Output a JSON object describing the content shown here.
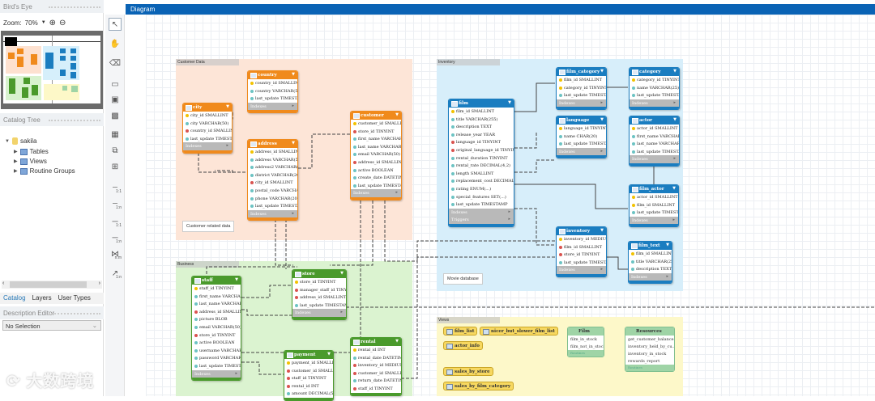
{
  "left_panel": {
    "birds_eye_title": "Bird's Eye",
    "zoom_label": "Zoom:",
    "zoom_value": "70%",
    "catalog_tree_title": "Catalog Tree",
    "tree": {
      "schema": "sakila",
      "children": [
        "Tables",
        "Views",
        "Routine Groups"
      ]
    },
    "tabs": [
      "Catalog",
      "Layers",
      "User Types"
    ],
    "active_tab": "Catalog",
    "description_editor_title": "Description Editor",
    "description_select": "No Selection"
  },
  "toolbar": {
    "tools": [
      "pointer-icon",
      "hand-icon",
      "eraser-icon",
      "layer-icon",
      "note-icon",
      "image-icon",
      "table-icon",
      "view-icon",
      "routine-group-icon",
      "rel-1-1-nonid-icon",
      "rel-1-n-nonid-icon",
      "rel-1-1-id-icon",
      "rel-1-n-id-icon",
      "rel-n-m-icon",
      "rel-existing-icon"
    ],
    "rel_labels": [
      "1:1",
      "1:n",
      "1:1",
      "1:n",
      "n:m",
      "1:n"
    ]
  },
  "diagram_tab": "Diagram",
  "colors": {
    "customer": "#f08a1c",
    "inventory": "#1a7dc0",
    "business": "#4a9a2c",
    "views_bg": "#fdf8c8",
    "tab": "#0a63b5"
  },
  "groups": [
    {
      "id": "customer",
      "label": "Customer Data",
      "note": "Customer related data"
    },
    {
      "id": "inventory",
      "label": "Inventory",
      "note": "Movie database"
    },
    {
      "id": "business",
      "label": "Business",
      "note": ""
    },
    {
      "id": "views",
      "label": "Views",
      "note": ""
    }
  ],
  "tables": [
    {
      "name": "country",
      "group": "customer",
      "columns": [
        "country_id SMALLINT",
        "country VARCHAR(50)",
        "last_update TIMESTAMP"
      ],
      "footers": [
        "Indexes"
      ]
    },
    {
      "name": "city",
      "group": "customer",
      "columns": [
        "city_id SMALLINT",
        "city VARCHAR(50)",
        "country_id SMALLINT",
        "last_update TIMESTAMP"
      ],
      "footers": [
        "Indexes"
      ]
    },
    {
      "name": "address",
      "group": "customer",
      "columns": [
        "address_id SMALLINT",
        "address VARCHAR(50)",
        "address2 VARCHAR(50)",
        "district VARCHAR(20)",
        "city_id SMALLINT",
        "postal_code VARCHAR(10)",
        "phone VARCHAR(20)",
        "last_update TIMESTAMP"
      ],
      "footers": [
        "Indexes"
      ]
    },
    {
      "name": "customer",
      "group": "customer",
      "columns": [
        "customer_id SMALLINT",
        "store_id TINYINT",
        "first_name VARCHAR(45)",
        "last_name VARCHAR(45)",
        "email VARCHAR(50)",
        "address_id SMALLINT",
        "active BOOLEAN",
        "create_date DATETIME",
        "last_update TIMESTAMP"
      ],
      "footers": [
        "Indexes"
      ]
    },
    {
      "name": "film",
      "group": "inventory",
      "columns": [
        "film_id SMALLINT",
        "title VARCHAR(255)",
        "description TEXT",
        "release_year YEAR",
        "language_id TINYINT",
        "original_language_id TINYINT",
        "rental_duration TINYINT",
        "rental_rate DECIMAL(4,2)",
        "length SMALLINT",
        "replacement_cost DECIMAL(5,2)",
        "rating ENUM(...)",
        "special_features SET(...)",
        "last_update TIMESTAMP"
      ],
      "footers": [
        "Indexes",
        "Triggers"
      ]
    },
    {
      "name": "film_category",
      "group": "inventory",
      "columns": [
        "film_id SMALLINT",
        "category_id TINYINT",
        "last_update TIMESTAMP"
      ],
      "footers": [
        "Indexes"
      ]
    },
    {
      "name": "category",
      "group": "inventory",
      "columns": [
        "category_id TINYINT",
        "name VARCHAR(25)",
        "last_update TIMESTAMP"
      ],
      "footers": [
        "Indexes"
      ]
    },
    {
      "name": "language",
      "group": "inventory",
      "columns": [
        "language_id TINYINT",
        "name CHAR(20)",
        "last_update TIMESTAMP"
      ],
      "footers": [
        "Indexes"
      ]
    },
    {
      "name": "actor",
      "group": "inventory",
      "columns": [
        "actor_id SMALLINT",
        "first_name VARCHAR(45)",
        "last_name VARCHAR(45)",
        "last_update TIMESTAMP"
      ],
      "footers": [
        "Indexes"
      ]
    },
    {
      "name": "film_actor",
      "group": "inventory",
      "columns": [
        "actor_id SMALLINT",
        "film_id SMALLINT",
        "last_update TIMESTAMP"
      ],
      "footers": [
        "Indexes"
      ]
    },
    {
      "name": "inventory",
      "group": "inventory",
      "columns": [
        "inventory_id MEDIUMINT",
        "film_id SMALLINT",
        "store_id TINYINT",
        "last_update TIMESTAMP"
      ],
      "footers": [
        "Indexes"
      ]
    },
    {
      "name": "film_text",
      "group": "inventory",
      "columns": [
        "film_id SMALLINT",
        "title VARCHAR(255)",
        "description TEXT"
      ],
      "footers": [
        "Indexes"
      ]
    },
    {
      "name": "staff",
      "group": "business",
      "columns": [
        "staff_id TINYINT",
        "first_name VARCHAR(45)",
        "last_name VARCHAR(45)",
        "address_id SMALLINT",
        "picture BLOB",
        "email VARCHAR(50)",
        "store_id TINYINT",
        "active BOOLEAN",
        "username VARCHAR(16)",
        "password VARCHAR(40)",
        "last_update TIMESTAMP"
      ],
      "footers": [
        "Indexes"
      ]
    },
    {
      "name": "store",
      "group": "business",
      "columns": [
        "store_id TINYINT",
        "manager_staff_id TINYINT",
        "address_id SMALLINT",
        "last_update TIMESTAMP"
      ],
      "footers": [
        "Indexes"
      ]
    },
    {
      "name": "payment",
      "group": "business",
      "columns": [
        "payment_id SMALLINT",
        "customer_id SMALLINT",
        "staff_id TINYINT",
        "rental_id INT",
        "amount DECIMAL(5,2)"
      ],
      "footers": []
    },
    {
      "name": "rental",
      "group": "business",
      "columns": [
        "rental_id INT",
        "rental_date DATETIME",
        "inventory_id MEDIUMINT",
        "customer_id SMALLINT",
        "return_date DATETIME",
        "staff_id TINYINT"
      ],
      "footers": []
    }
  ],
  "views": [
    "film_list",
    "nicer_but_slower_film_list",
    "actor_info",
    "sales_by_store",
    "sales_by_film_category"
  ],
  "routine_groups": [
    {
      "name": "Film",
      "routines": [
        "film_in_stock",
        "film_not_in_stock"
      ],
      "footer": "Routines"
    },
    {
      "name": "Resources",
      "routines": [
        "get_customer_balance",
        "inventory_held_by_cu...",
        "inventory_in_stock",
        "rewards_report"
      ],
      "footer": "Routines"
    }
  ],
  "watermark": "大数跨境"
}
